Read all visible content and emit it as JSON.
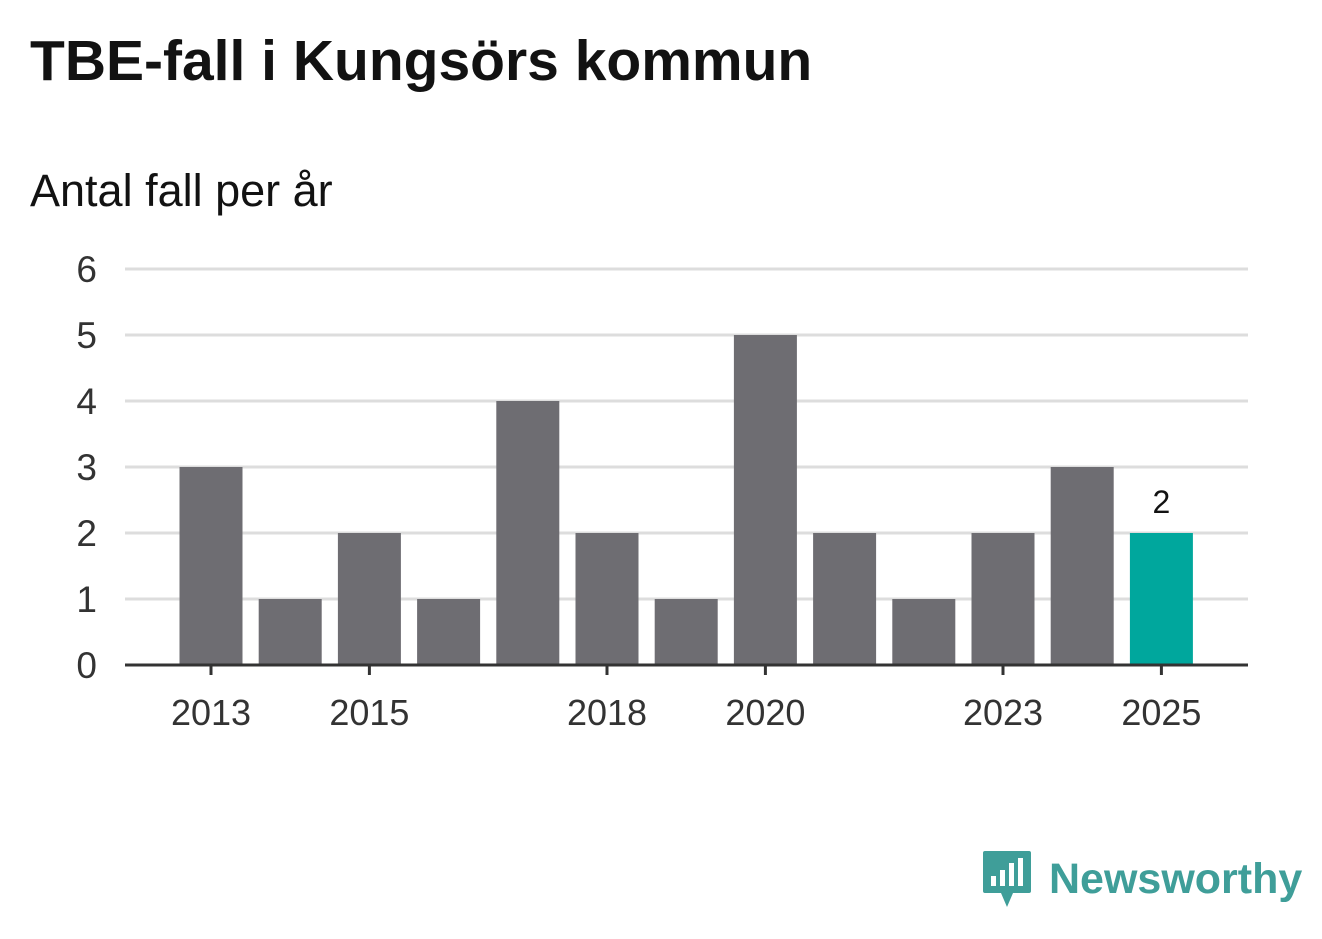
{
  "chart_data": {
    "type": "bar",
    "title": "TBE-fall i Kungsörs kommun",
    "subtitle": "Antal fall per år",
    "categories": [
      "2013",
      "2014",
      "2015",
      "2016",
      "2017",
      "2018",
      "2019",
      "2020",
      "2021",
      "2022",
      "2023",
      "2024",
      "2025"
    ],
    "values": [
      3,
      1,
      2,
      1,
      4,
      2,
      1,
      5,
      2,
      1,
      2,
      3,
      2
    ],
    "x_tick_labels": [
      "2013",
      "2015",
      "2018",
      "2020",
      "2023",
      "2025"
    ],
    "y_ticks": [
      0,
      1,
      2,
      3,
      4,
      5,
      6
    ],
    "ylim": [
      0,
      6
    ],
    "highlight_index": 12,
    "highlight_label": "2",
    "colors": {
      "bar": "#6e6d72",
      "highlight": "#00a79d",
      "grid": "#dddddd",
      "axis": "#333333"
    },
    "grid": true,
    "xlabel": "",
    "ylabel": ""
  },
  "brand": {
    "name": "Newsworthy",
    "icon": "newsworthy-logo-icon",
    "color": "#3f9e99"
  }
}
